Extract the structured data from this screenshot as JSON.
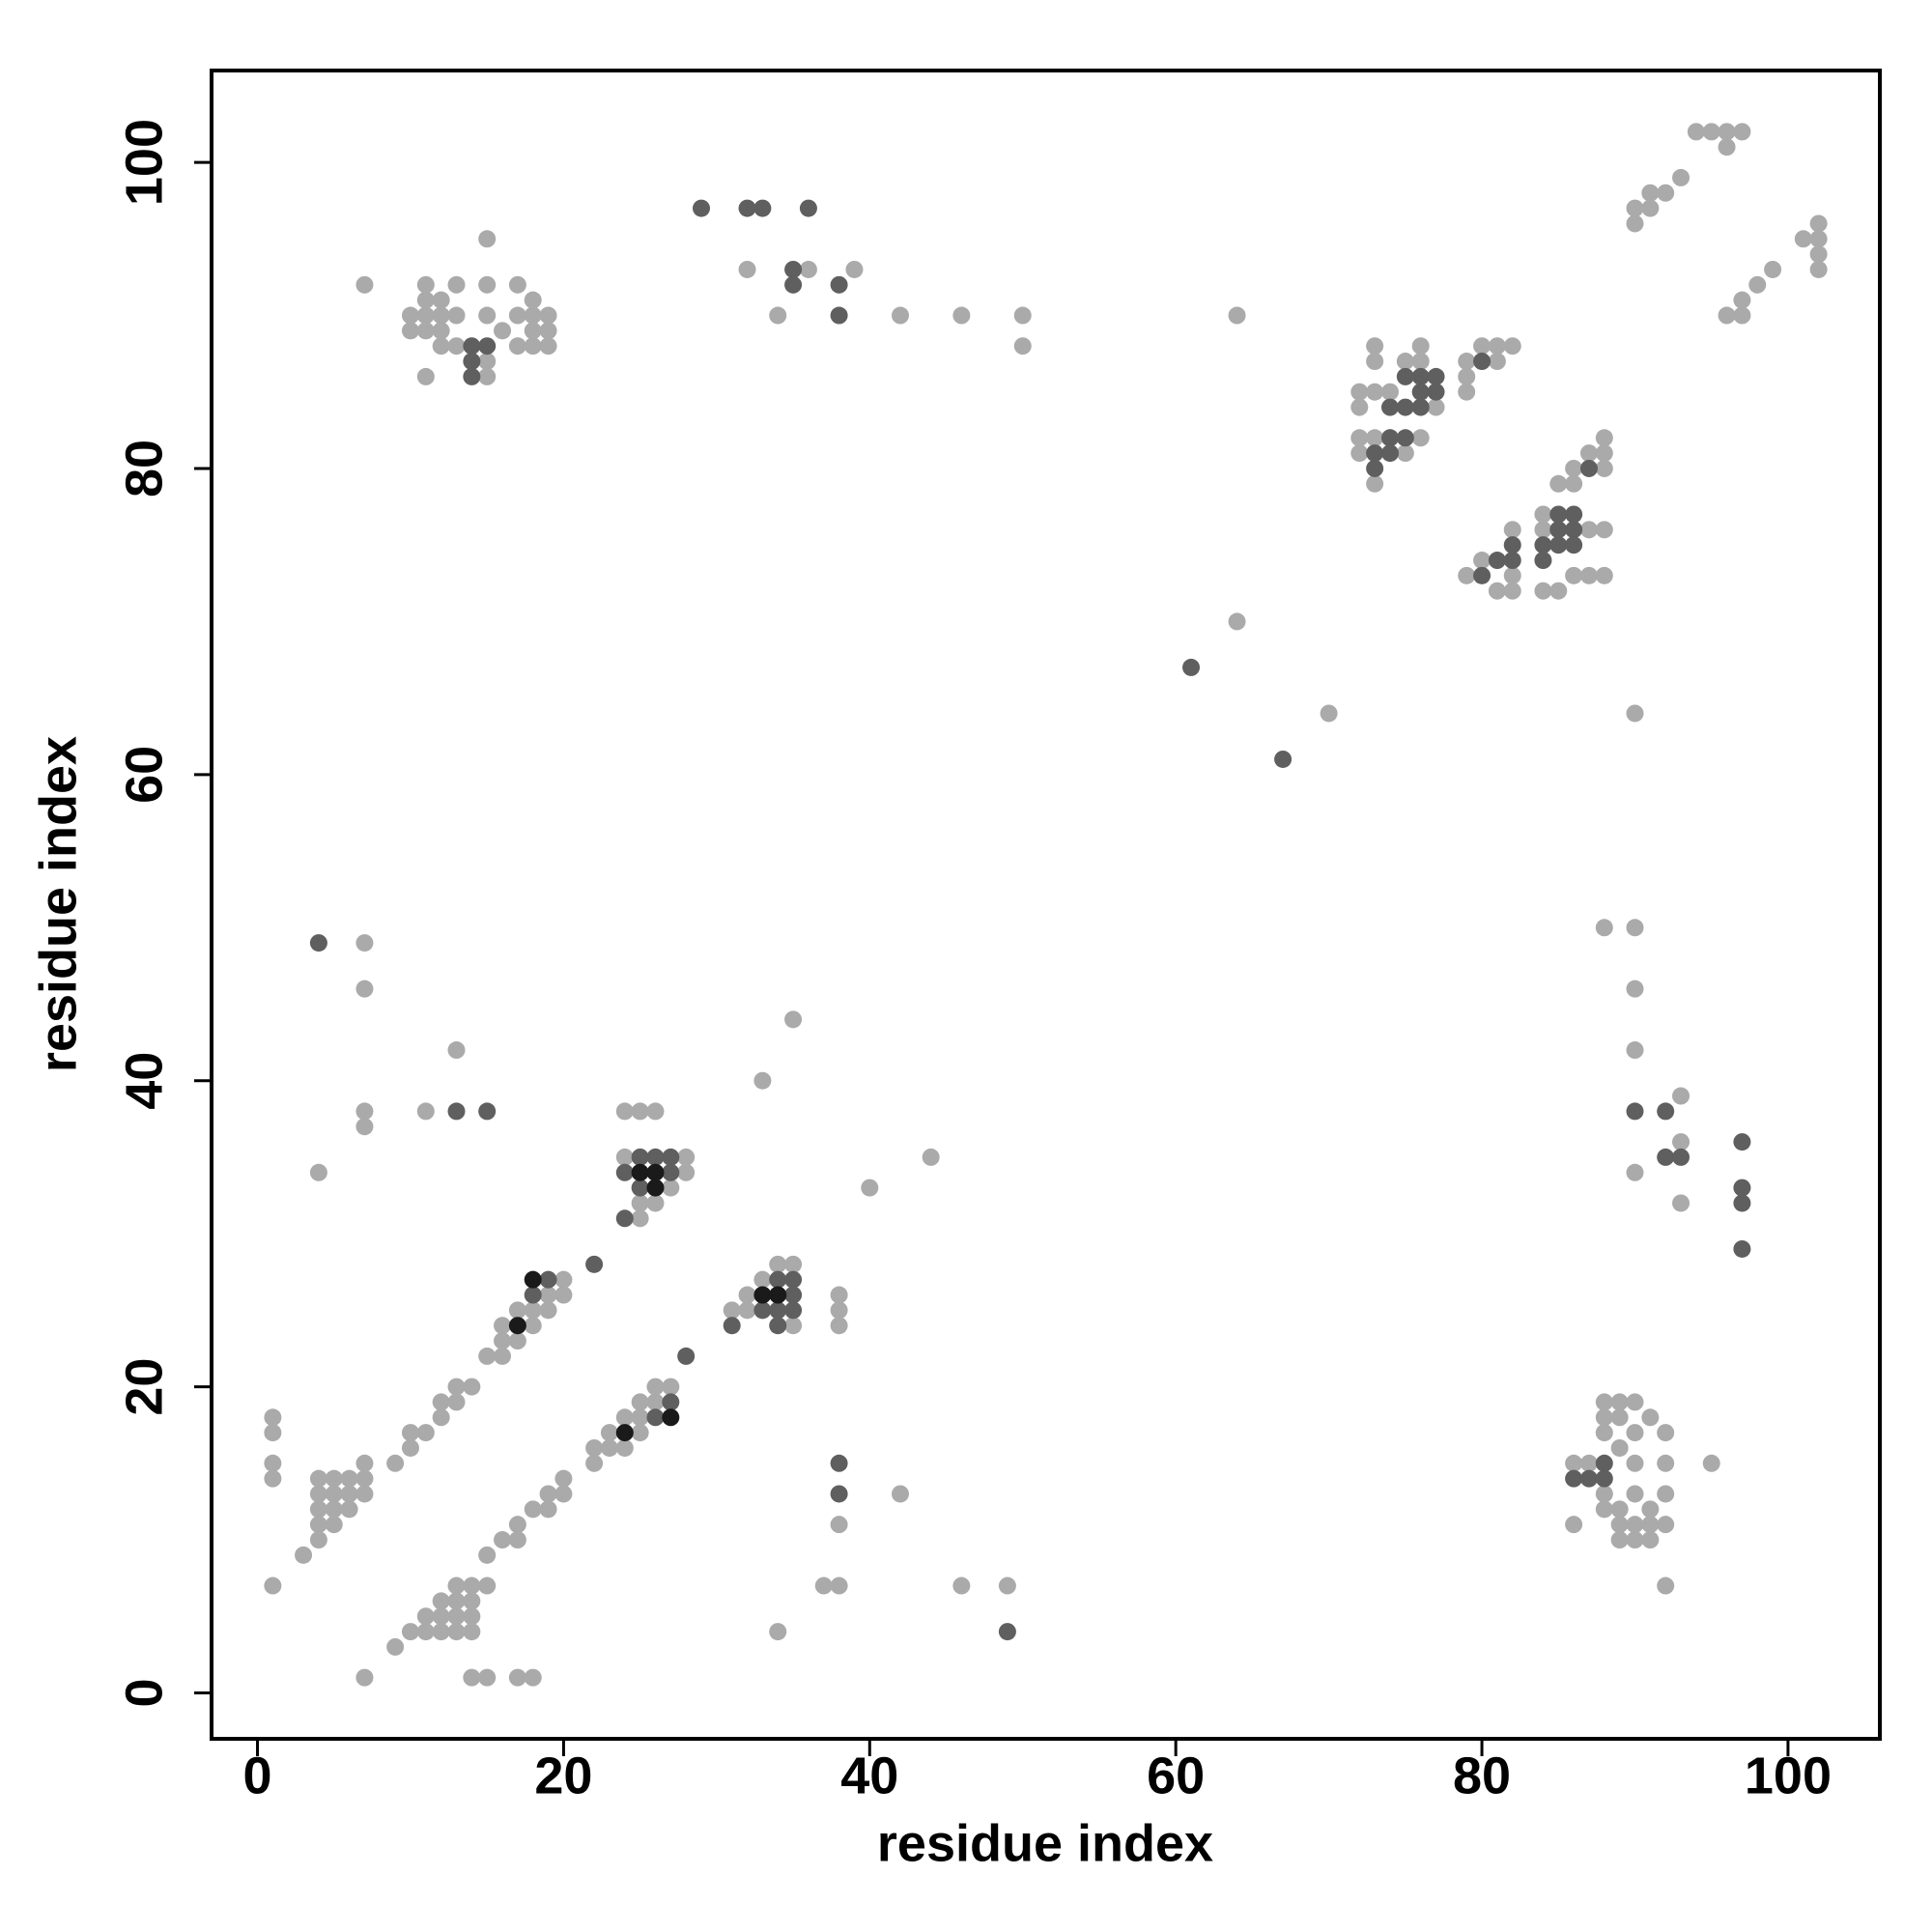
{
  "chart_data": {
    "type": "scatter",
    "xlabel": "residue index",
    "ylabel": "residue index",
    "xlim": [
      -3,
      106
    ],
    "ylim": [
      -3,
      106
    ],
    "xticks": [
      0,
      20,
      40,
      60,
      80,
      100
    ],
    "yticks": [
      0,
      20,
      40,
      60,
      80,
      100
    ],
    "series": [
      {
        "color": "#aaaaaa",
        "x": [
          1,
          1,
          1,
          1,
          1,
          3,
          4,
          4,
          4,
          4,
          4,
          5,
          5,
          5,
          5,
          6,
          6,
          6,
          7,
          7,
          7,
          9,
          10,
          10,
          11,
          12,
          12,
          13,
          13,
          14,
          15,
          16,
          16,
          16,
          17,
          17,
          18,
          18,
          19,
          19,
          20,
          20,
          7,
          9,
          10,
          11,
          11,
          12,
          12,
          12,
          13,
          13,
          13,
          13,
          14,
          14,
          14,
          14,
          14,
          15,
          15,
          15,
          16,
          17,
          17,
          17,
          18,
          18,
          19,
          19,
          20,
          20,
          22,
          22,
          23,
          23,
          24,
          24,
          25,
          25,
          25,
          26,
          26,
          27,
          31,
          32,
          32,
          33,
          33,
          34,
          35,
          35,
          38,
          38,
          38,
          33,
          35,
          40,
          44,
          4,
          7,
          7,
          7,
          7,
          11,
          13,
          24,
          24,
          25,
          25,
          25,
          26,
          26,
          27,
          28,
          28,
          37,
          38,
          38,
          34,
          42,
          46,
          49,
          7,
          10,
          10,
          11,
          11,
          11,
          11,
          11,
          12,
          12,
          12,
          12,
          13,
          13,
          13,
          15,
          15,
          15,
          15,
          15,
          16,
          17,
          17,
          17,
          18,
          18,
          18,
          18,
          19,
          19,
          19,
          32,
          34,
          36,
          39,
          42,
          46,
          50,
          50,
          64,
          64,
          70,
          72,
          72,
          72,
          72,
          73,
          73,
          73,
          73,
          73,
          74,
          74,
          75,
          75,
          76,
          76,
          76,
          77,
          79,
          79,
          79,
          80,
          81,
          81,
          82,
          79,
          80,
          81,
          82,
          82,
          82,
          84,
          84,
          84,
          85,
          85,
          86,
          86,
          87,
          87,
          87,
          88,
          88,
          88,
          88,
          88,
          86,
          90,
          90,
          91,
          91,
          92,
          93,
          94,
          95,
          96,
          96,
          97,
          96,
          97,
          97,
          98,
          99,
          101,
          102,
          102,
          102,
          102,
          90,
          88,
          90,
          90,
          90,
          90,
          93,
          93,
          93,
          86,
          86,
          87,
          88,
          88,
          88,
          88,
          88,
          89,
          89,
          89,
          89,
          89,
          89,
          90,
          90,
          90,
          90,
          90,
          90,
          91,
          91,
          91,
          91,
          92,
          92,
          92,
          92,
          92,
          95
        ],
        "values": [
          18,
          17,
          15,
          14,
          7,
          9,
          14,
          13,
          12,
          11,
          10,
          14,
          13,
          12,
          11,
          14,
          13,
          12,
          15,
          14,
          13,
          15,
          17,
          16,
          17,
          19,
          18,
          20,
          19,
          20,
          22,
          24,
          23,
          22,
          25,
          23,
          25,
          24,
          26,
          25,
          27,
          26,
          1,
          3,
          4,
          5,
          4,
          6,
          5,
          4,
          7,
          6,
          5,
          4,
          7,
          6,
          5,
          4,
          1,
          9,
          7,
          1,
          10,
          11,
          10,
          1,
          12,
          1,
          13,
          12,
          14,
          13,
          16,
          15,
          17,
          16,
          18,
          16,
          19,
          18,
          17,
          20,
          19,
          20,
          25,
          26,
          25,
          27,
          26,
          28,
          28,
          24,
          26,
          25,
          24,
          40,
          44,
          33,
          35,
          34,
          49,
          46,
          38,
          37,
          38,
          42,
          38,
          35,
          38,
          32,
          31,
          38,
          32,
          33,
          35,
          34,
          7,
          7,
          11,
          4,
          13,
          7,
          7,
          92,
          90,
          89,
          92,
          91,
          90,
          89,
          86,
          91,
          90,
          89,
          88,
          92,
          90,
          88,
          95,
          92,
          90,
          87,
          86,
          89,
          92,
          90,
          88,
          91,
          90,
          89,
          88,
          90,
          89,
          88,
          93,
          90,
          93,
          93,
          90,
          90,
          90,
          88,
          90,
          70,
          64,
          85,
          84,
          82,
          81,
          88,
          87,
          85,
          82,
          79,
          85,
          82,
          87,
          81,
          88,
          87,
          82,
          84,
          87,
          86,
          85,
          88,
          88,
          87,
          88,
          73,
          74,
          72,
          76,
          73,
          72,
          77,
          76,
          72,
          79,
          72,
          79,
          73,
          81,
          76,
          73,
          82,
          81,
          80,
          76,
          73,
          80,
          97,
          96,
          98,
          97,
          98,
          99,
          102,
          102,
          102,
          101,
          102,
          90,
          91,
          90,
          92,
          93,
          95,
          96,
          95,
          94,
          93,
          64,
          50,
          50,
          46,
          42,
          34,
          39,
          36,
          32,
          15,
          11,
          15,
          19,
          18,
          17,
          13,
          12,
          19,
          18,
          16,
          12,
          11,
          10,
          19,
          17,
          15,
          13,
          11,
          10,
          18,
          12,
          11,
          10,
          17,
          15,
          13,
          11,
          7,
          15
        ]
      },
      {
        "color": "#5f5f5f",
        "x": [
          4,
          13,
          15,
          14,
          15,
          14,
          14,
          18,
          19,
          22,
          24,
          24,
          25,
          25,
          26,
          27,
          27,
          28,
          26,
          27,
          31,
          33,
          34,
          34,
          34,
          35,
          35,
          35,
          38,
          38,
          49,
          29,
          32,
          33,
          36,
          35,
          35,
          38,
          38,
          61,
          67,
          73,
          73,
          74,
          74,
          74,
          75,
          75,
          75,
          76,
          76,
          76,
          77,
          77,
          80,
          80,
          81,
          82,
          82,
          84,
          84,
          85,
          85,
          85,
          86,
          86,
          86,
          87,
          90,
          92,
          92,
          93,
          97,
          97,
          97,
          97,
          86,
          87,
          88,
          88
        ],
        "values": [
          49,
          38,
          38,
          88,
          88,
          87,
          86,
          26,
          27,
          28,
          34,
          31,
          35,
          33,
          35,
          35,
          34,
          22,
          18,
          19,
          24,
          25,
          27,
          25,
          24,
          27,
          26,
          25,
          15,
          13,
          4,
          97,
          97,
          97,
          97,
          93,
          92,
          92,
          90,
          67,
          61,
          81,
          80,
          84,
          82,
          81,
          86,
          84,
          82,
          86,
          85,
          84,
          86,
          85,
          87,
          73,
          74,
          75,
          74,
          74,
          75,
          77,
          76,
          75,
          77,
          76,
          75,
          80,
          38,
          38,
          35,
          35,
          36,
          33,
          32,
          29,
          14,
          14,
          15,
          14
        ]
      },
      {
        "color": "#1a1a1a",
        "x": [
          17,
          18,
          24,
          27,
          25,
          26,
          26,
          33,
          34
        ],
        "values": [
          24,
          27,
          17,
          18,
          34,
          34,
          33,
          26,
          26
        ]
      }
    ]
  }
}
